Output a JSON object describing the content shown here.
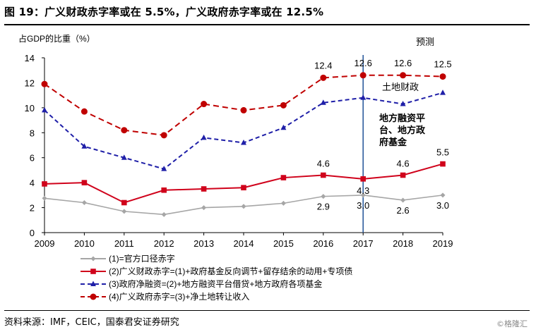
{
  "figure": {
    "title": "图 19：广义财政赤字率或在 5.5%，广义政府赤字率或在 12.5%",
    "source": "资料来源：IMF，CEIC，国泰君安证券研究",
    "watermark": "©格隆汇"
  },
  "chart_data": {
    "type": "line",
    "ylabel": "占GDP的比重（%）",
    "ylim": [
      0,
      14
    ],
    "yticks": [
      "0",
      "2",
      "4",
      "6",
      "8",
      "10",
      "12",
      "14"
    ],
    "categories": [
      "2009",
      "2010",
      "2011",
      "2012",
      "2013",
      "2014",
      "2015",
      "2016",
      "2017",
      "2018",
      "2019"
    ],
    "forecast_label": "预测",
    "forecast_divider_at": "2017",
    "series": [
      {
        "name": "(1)=官方口径赤字",
        "color": "#a6a6a6",
        "marker": "diamond",
        "dash": "solid",
        "values": [
          2.75,
          2.4,
          1.7,
          1.45,
          2.0,
          2.1,
          2.35,
          2.9,
          3.0,
          2.6,
          3.0
        ]
      },
      {
        "name": "(2)广义财政赤字=(1)+政府基金反向调节+留存结余的动用+专项债",
        "color": "#d0021b",
        "marker": "square",
        "dash": "solid",
        "values": [
          3.9,
          4.0,
          2.4,
          3.4,
          3.5,
          3.6,
          4.4,
          4.6,
          4.3,
          4.6,
          5.5
        ]
      },
      {
        "name": "(3)政府净融资=(2)+地方融资平台借贷+地方政府各项基金",
        "color": "#1f1fa8",
        "marker": "triangle",
        "dash": "dashed",
        "values": [
          9.8,
          6.9,
          6.0,
          5.1,
          7.6,
          7.2,
          8.4,
          10.4,
          10.8,
          10.3,
          11.2
        ]
      },
      {
        "name": "(4)广义政府赤字=(3)+净土地转让收入",
        "color": "#c00000",
        "marker": "circle",
        "dash": "dashed",
        "values": [
          11.9,
          9.7,
          8.2,
          7.8,
          10.3,
          9.8,
          10.2,
          12.4,
          12.6,
          12.6,
          12.5
        ]
      }
    ],
    "data_labels": [
      {
        "series": 3,
        "index": 7,
        "text": "12.4"
      },
      {
        "series": 3,
        "index": 8,
        "text": "12.6"
      },
      {
        "series": 3,
        "index": 9,
        "text": "12.6"
      },
      {
        "series": 3,
        "index": 10,
        "text": "12.5"
      },
      {
        "series": 1,
        "index": 7,
        "text": "4.6"
      },
      {
        "series": 1,
        "index": 8,
        "text": "4.3"
      },
      {
        "series": 1,
        "index": 9,
        "text": "4.6"
      },
      {
        "series": 1,
        "index": 10,
        "text": "5.5"
      },
      {
        "series": 0,
        "index": 7,
        "text": "2.9"
      },
      {
        "series": 0,
        "index": 8,
        "text": "3.0"
      },
      {
        "series": 0,
        "index": 9,
        "text": "2.6"
      },
      {
        "series": 0,
        "index": 10,
        "text": "3.0"
      }
    ],
    "annotations": [
      {
        "text": "土地财政",
        "color": "#1f8fd6"
      },
      {
        "text": "地方融资平",
        "color": "#d0021b"
      },
      {
        "text": "台、地方政",
        "color": "#d0021b"
      },
      {
        "text": "府基金",
        "color": "#d0021b"
      }
    ],
    "divider_color": "#2e5d9e"
  }
}
